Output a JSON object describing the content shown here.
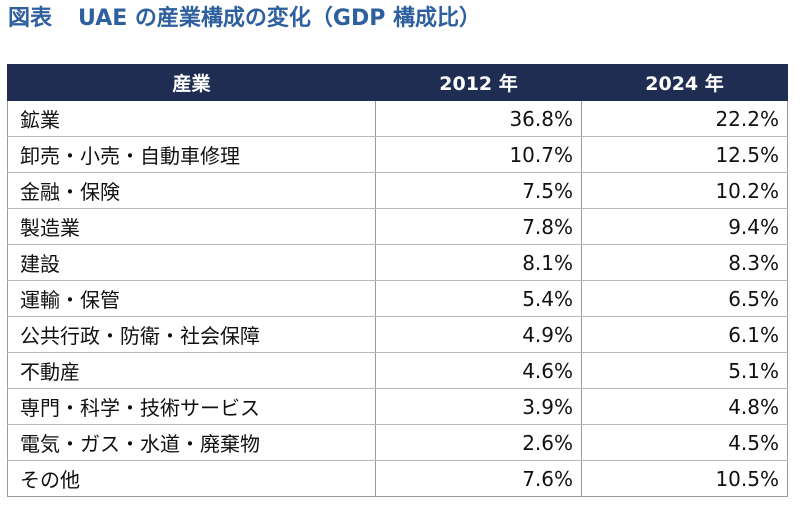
{
  "title": {
    "figure_label": "図表",
    "text": "UAE の産業構成の変化（GDP 構成比）"
  },
  "table": {
    "headers": [
      "産業",
      "2012 年",
      "2024 年"
    ],
    "rows": [
      {
        "industry": "鉱業",
        "y2012": "36.8%",
        "y2024": "22.2%"
      },
      {
        "industry": "卸売・小売・自動車修理",
        "y2012": "10.7%",
        "y2024": "12.5%"
      },
      {
        "industry": "金融・保険",
        "y2012": "7.5%",
        "y2024": "10.2%"
      },
      {
        "industry": "製造業",
        "y2012": "7.8%",
        "y2024": "9.4%"
      },
      {
        "industry": "建設",
        "y2012": "8.1%",
        "y2024": "8.3%"
      },
      {
        "industry": "運輸・保管",
        "y2012": "5.4%",
        "y2024": "6.5%"
      },
      {
        "industry": "公共行政・防衛・社会保障",
        "y2012": "4.9%",
        "y2024": "6.1%"
      },
      {
        "industry": "不動産",
        "y2012": "4.6%",
        "y2024": "5.1%"
      },
      {
        "industry": "専門・科学・技術サービス",
        "y2012": "3.9%",
        "y2024": "4.8%"
      },
      {
        "industry": "電気・ガス・水道・廃棄物",
        "y2012": "2.6%",
        "y2024": "4.5%"
      },
      {
        "industry": "その他",
        "y2012": "7.6%",
        "y2024": "10.5%"
      }
    ]
  },
  "colors": {
    "title": "#2e5f9e",
    "header_bg": "#1f2d52",
    "header_text": "#ffffff"
  }
}
